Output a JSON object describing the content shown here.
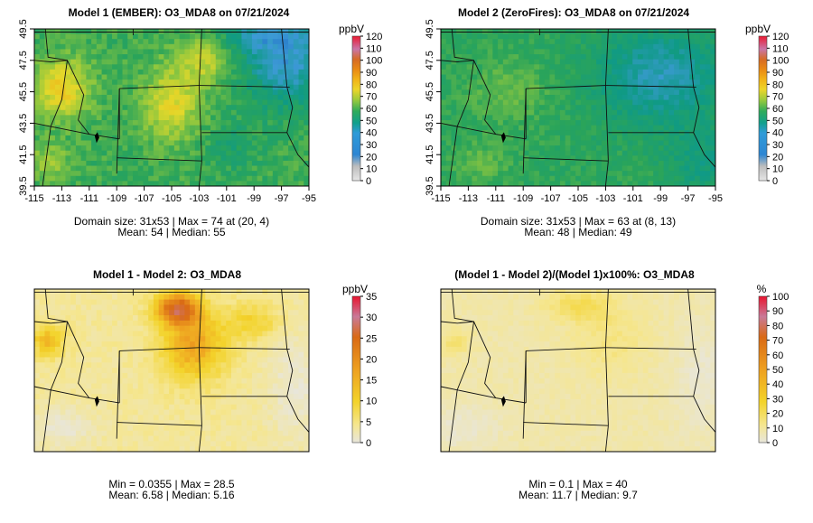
{
  "panels": [
    {
      "id": "p1",
      "title": "Model 1 (EMBER): O3_MDA8 on 07/21/2024",
      "colorbar_unit": "ppbV",
      "colorbar_ticks": [
        "0",
        "10",
        "20",
        "30",
        "40",
        "50",
        "60",
        "70",
        "80",
        "90",
        "100",
        "110",
        "120"
      ],
      "x_ticks": [
        "-115",
        "-113",
        "-111",
        "-109",
        "-107",
        "-105",
        "-103",
        "-101",
        "-99",
        "-97",
        "-95"
      ],
      "y_ticks": [
        "39.5",
        "41.5",
        "43.5",
        "45.5",
        "47.5",
        "49.5"
      ],
      "stats_line1": "Domain size: 31x53 | Max = 74 at (20, 4)",
      "stats_line2": "Mean: 54 |  Median: 55",
      "palette": "abs"
    },
    {
      "id": "p2",
      "title": "Model 2 (ZeroFires): O3_MDA8 on 07/21/2024",
      "colorbar_unit": "ppbV",
      "colorbar_ticks": [
        "0",
        "10",
        "20",
        "30",
        "40",
        "50",
        "60",
        "70",
        "80",
        "90",
        "100",
        "110",
        "120"
      ],
      "x_ticks": [
        "-115",
        "-113",
        "-111",
        "-109",
        "-107",
        "-105",
        "-103",
        "-101",
        "-99",
        "-97",
        "-95"
      ],
      "y_ticks": [
        "39.5",
        "41.5",
        "43.5",
        "45.5",
        "47.5",
        "49.5"
      ],
      "stats_line1": "Domain size: 31x53 | Max = 63 at (8, 13)",
      "stats_line2": "Mean: 48 |  Median: 49",
      "palette": "abs"
    },
    {
      "id": "p3",
      "title": "Model 1 - Model 2: O3_MDA8",
      "colorbar_unit": "ppbV",
      "colorbar_ticks": [
        "0",
        "5",
        "10",
        "15",
        "20",
        "25",
        "30",
        "35"
      ],
      "x_ticks": [],
      "y_ticks": [],
      "stats_line1": "Min = 0.0355 | Max = 28.5",
      "stats_line2": "Mean: 6.58 |  Median: 5.16",
      "palette": "diff"
    },
    {
      "id": "p4",
      "title": "(Model 1 - Model 2)/(Model 1)x100%: O3_MDA8",
      "colorbar_unit": "%",
      "colorbar_ticks": [
        "0",
        "10",
        "20",
        "30",
        "40",
        "50",
        "60",
        "70",
        "80",
        "90",
        "100"
      ],
      "x_ticks": [],
      "y_ticks": [],
      "stats_line1": "Min = 0.1 | Max = 40",
      "stats_line2": "Mean: 11.7 |  Median: 9.7",
      "palette": "diff"
    }
  ],
  "colors": {
    "abs_scale": [
      "#e6e6e6",
      "#c8c8c8",
      "#1e6fc4",
      "#3d9ad6",
      "#0f9a86",
      "#2aa45a",
      "#8cc63f",
      "#e4d82a",
      "#f0b419",
      "#e88a12",
      "#d46820",
      "#c775a6",
      "#e8122a"
    ],
    "diff_scale": [
      "#e8e6dc",
      "#f5e690",
      "#f3d32a",
      "#eea020",
      "#d96a15",
      "#c97a98",
      "#e81530"
    ]
  }
}
